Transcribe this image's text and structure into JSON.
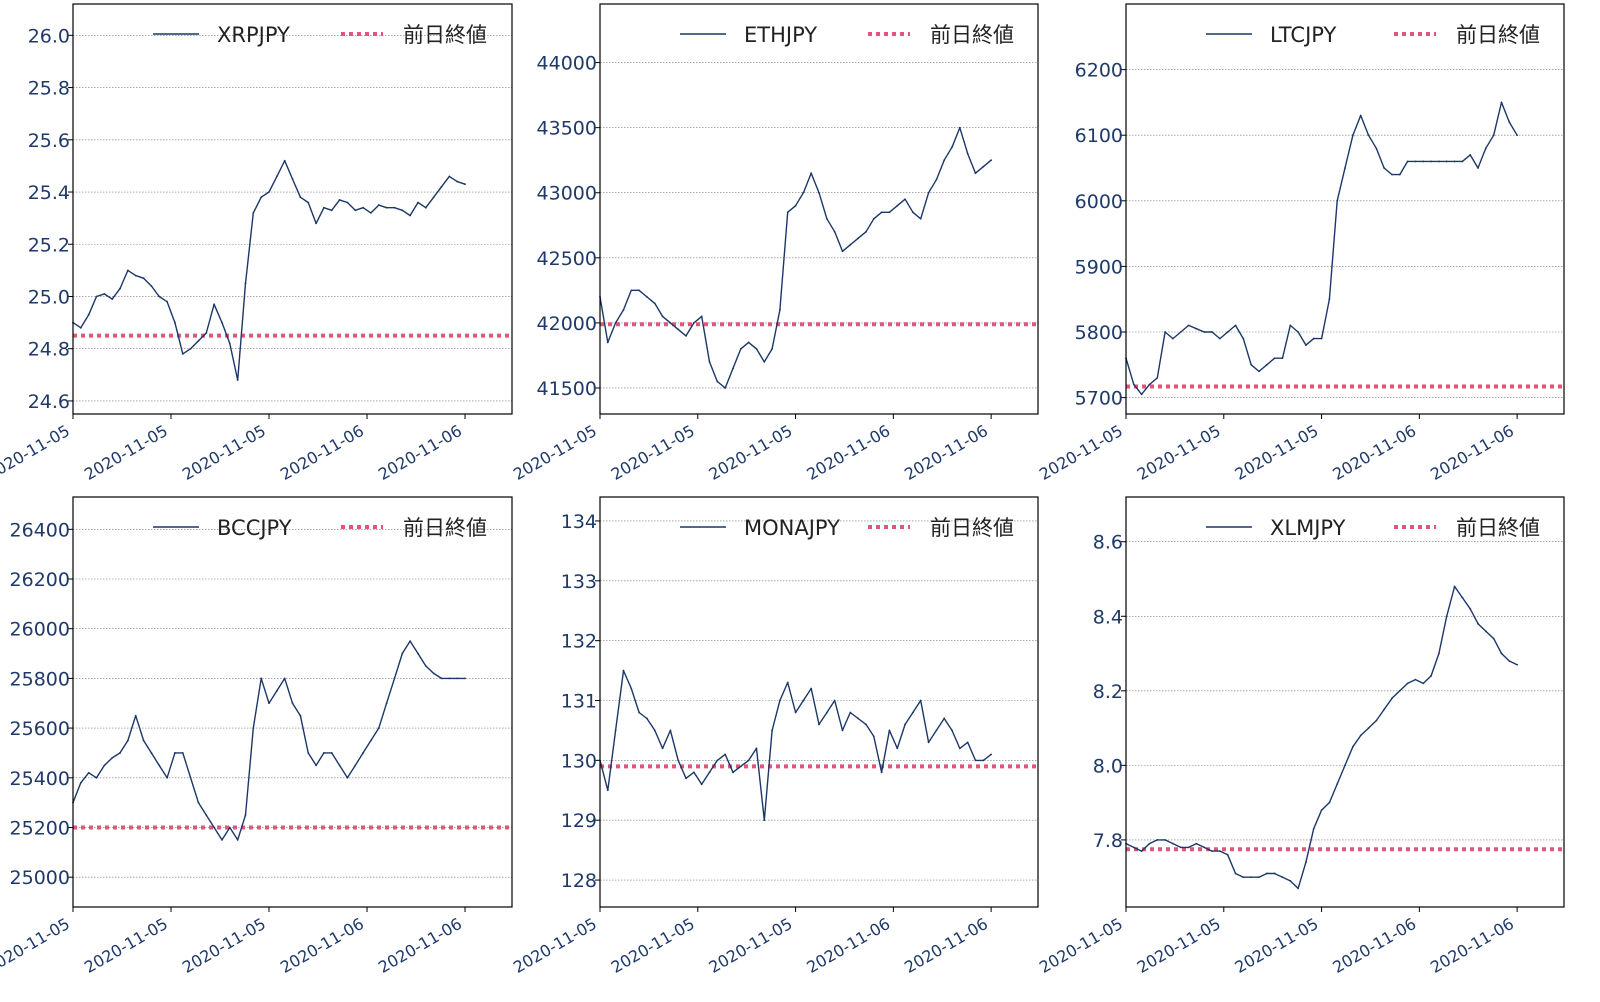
{
  "colors": {
    "series": "#1c3767",
    "reference": "#e0557a",
    "tick_text": "#1f3a6a",
    "grid": "#777777",
    "frame": "#000000"
  },
  "chart_data": [
    {
      "type": "line",
      "series": [
        {
          "name": "XRPJPY",
          "x": [
            0,
            2,
            4,
            6,
            8,
            10,
            12,
            14,
            16,
            18,
            20,
            22,
            24,
            26,
            28,
            30,
            32,
            34,
            36,
            38,
            40,
            42,
            44,
            46,
            48,
            50,
            52,
            54,
            56,
            58,
            60,
            62,
            64,
            66,
            68,
            70,
            72,
            74,
            76,
            78,
            80,
            82,
            84,
            86,
            88,
            90,
            92,
            94,
            96,
            98,
            100
          ],
          "values": [
            24.9,
            24.88,
            24.93,
            25.0,
            25.01,
            24.99,
            25.03,
            25.1,
            25.08,
            25.07,
            25.04,
            25.0,
            24.98,
            24.9,
            24.78,
            24.8,
            24.83,
            24.86,
            24.97,
            24.9,
            24.82,
            24.68,
            25.05,
            25.32,
            25.38,
            25.4,
            25.46,
            25.52,
            25.45,
            25.38,
            25.36,
            25.28,
            25.34,
            25.33,
            25.37,
            25.36,
            25.33,
            25.34,
            25.32,
            25.35,
            25.34,
            25.34,
            25.33,
            25.31,
            25.36,
            25.34,
            25.38,
            25.42,
            25.46,
            25.44,
            25.43
          ]
        },
        {
          "name": "前日終値",
          "values": [
            24.85
          ]
        }
      ],
      "x_tick_labels": [
        "2020-11-05",
        "2020-11-05",
        "2020-11-05",
        "2020-11-06",
        "2020-11-06"
      ],
      "y_ticks": [
        24.6,
        24.8,
        25.0,
        25.2,
        25.4,
        25.6,
        25.8,
        26.0
      ],
      "y_tick_labels": [
        "24.6",
        "24.8",
        "25.0",
        "25.2",
        "25.4",
        "25.6",
        "25.8",
        "26.0"
      ],
      "ylim": [
        24.55,
        26.12
      ],
      "grid": "horizontal",
      "legend": "top-right"
    },
    {
      "type": "line",
      "series": [
        {
          "name": "ETHJPY",
          "x": [
            0,
            2,
            4,
            6,
            8,
            10,
            12,
            14,
            16,
            18,
            20,
            22,
            24,
            26,
            28,
            30,
            32,
            34,
            36,
            38,
            40,
            42,
            44,
            46,
            48,
            50,
            52,
            54,
            56,
            58,
            60,
            62,
            64,
            66,
            68,
            70,
            72,
            74,
            76,
            78,
            80,
            82,
            84,
            86,
            88,
            90,
            92,
            94,
            96,
            98,
            100
          ],
          "values": [
            42200,
            41850,
            42000,
            42100,
            42250,
            42250,
            42200,
            42150,
            42050,
            42000,
            41950,
            41900,
            42000,
            42050,
            41700,
            41550,
            41500,
            41650,
            41800,
            41850,
            41800,
            41700,
            41800,
            42100,
            42850,
            42900,
            43000,
            43150,
            43000,
            42800,
            42700,
            42550,
            42600,
            42650,
            42700,
            42800,
            42850,
            42850,
            42900,
            42950,
            42850,
            42800,
            43000,
            43100,
            43250,
            43350,
            43500,
            43300,
            43150,
            43200,
            43250
          ]
        },
        {
          "name": "前日終値",
          "values": [
            41990
          ]
        }
      ],
      "x_tick_labels": [
        "2020-11-05",
        "2020-11-05",
        "2020-11-05",
        "2020-11-06",
        "2020-11-06"
      ],
      "y_ticks": [
        41500,
        42000,
        42500,
        43000,
        43500,
        44000
      ],
      "y_tick_labels": [
        "41500",
        "42000",
        "42500",
        "43000",
        "43500",
        "44000"
      ],
      "ylim": [
        41300,
        44450
      ],
      "grid": "horizontal",
      "legend": "top-right"
    },
    {
      "type": "line",
      "series": [
        {
          "name": "LTCJPY",
          "x": [
            0,
            2,
            4,
            6,
            8,
            10,
            12,
            14,
            16,
            18,
            20,
            22,
            24,
            26,
            28,
            30,
            32,
            34,
            36,
            38,
            40,
            42,
            44,
            46,
            48,
            50,
            52,
            54,
            56,
            58,
            60,
            62,
            64,
            66,
            68,
            70,
            72,
            74,
            76,
            78,
            80,
            82,
            84,
            86,
            88,
            90,
            92,
            94,
            96,
            98,
            100
          ],
          "values": [
            5760,
            5720,
            5705,
            5720,
            5730,
            5800,
            5790,
            5800,
            5810,
            5805,
            5800,
            5800,
            5790,
            5800,
            5810,
            5790,
            5750,
            5740,
            5750,
            5760,
            5760,
            5810,
            5800,
            5780,
            5790,
            5790,
            5850,
            6000,
            6050,
            6100,
            6130,
            6100,
            6080,
            6050,
            6040,
            6040,
            6060,
            6060,
            6060,
            6060,
            6060,
            6060,
            6060,
            6060,
            6070,
            6050,
            6080,
            6100,
            6150,
            6120,
            6100
          ]
        },
        {
          "name": "前日終値",
          "values": [
            5717
          ]
        }
      ],
      "x_tick_labels": [
        "2020-11-05",
        "2020-11-05",
        "2020-11-05",
        "2020-11-06",
        "2020-11-06"
      ],
      "y_ticks": [
        5700,
        5800,
        5900,
        6000,
        6100,
        6200
      ],
      "y_tick_labels": [
        "5700",
        "5800",
        "5900",
        "6000",
        "6100",
        "6200"
      ],
      "ylim": [
        5675,
        6300
      ],
      "grid": "horizontal",
      "legend": "top-right"
    },
    {
      "type": "line",
      "series": [
        {
          "name": "BCCJPY",
          "x": [
            0,
            2,
            4,
            6,
            8,
            10,
            12,
            14,
            16,
            18,
            20,
            22,
            24,
            26,
            28,
            30,
            32,
            34,
            36,
            38,
            40,
            42,
            44,
            46,
            48,
            50,
            52,
            54,
            56,
            58,
            60,
            62,
            64,
            66,
            68,
            70,
            72,
            74,
            76,
            78,
            80,
            82,
            84,
            86,
            88,
            90,
            92,
            94,
            96,
            98,
            100
          ],
          "values": [
            25300,
            25380,
            25420,
            25400,
            25450,
            25480,
            25500,
            25550,
            25650,
            25550,
            25500,
            25450,
            25400,
            25500,
            25500,
            25400,
            25300,
            25250,
            25200,
            25150,
            25200,
            25150,
            25250,
            25600,
            25800,
            25700,
            25750,
            25800,
            25700,
            25650,
            25500,
            25450,
            25500,
            25500,
            25450,
            25400,
            25450,
            25500,
            25550,
            25600,
            25700,
            25800,
            25900,
            25950,
            25900,
            25850,
            25820,
            25800,
            25800,
            25800,
            25800
          ]
        },
        {
          "name": "前日終値",
          "values": [
            25200
          ]
        }
      ],
      "x_tick_labels": [
        "2020-11-05",
        "2020-11-05",
        "2020-11-05",
        "2020-11-06",
        "2020-11-06"
      ],
      "y_ticks": [
        25000,
        25200,
        25400,
        25600,
        25800,
        26000,
        26200,
        26400
      ],
      "y_tick_labels": [
        "25000",
        "25200",
        "25400",
        "25600",
        "25800",
        "26000",
        "26200",
        "26400"
      ],
      "ylim": [
        24880,
        26530
      ],
      "grid": "horizontal",
      "legend": "top-right"
    },
    {
      "type": "line",
      "series": [
        {
          "name": "MONAJPY",
          "x": [
            0,
            2,
            4,
            6,
            8,
            10,
            12,
            14,
            16,
            18,
            20,
            22,
            24,
            26,
            28,
            30,
            32,
            34,
            36,
            38,
            40,
            42,
            44,
            46,
            48,
            50,
            52,
            54,
            56,
            58,
            60,
            62,
            64,
            66,
            68,
            70,
            72,
            74,
            76,
            78,
            80,
            82,
            84,
            86,
            88,
            90,
            92,
            94,
            96,
            98,
            100
          ],
          "values": [
            130.0,
            129.5,
            130.5,
            131.5,
            131.2,
            130.8,
            130.7,
            130.5,
            130.2,
            130.5,
            130.0,
            129.7,
            129.8,
            129.6,
            129.8,
            130.0,
            130.1,
            129.8,
            129.9,
            130.0,
            130.2,
            129.0,
            130.5,
            131.0,
            131.3,
            130.8,
            131.0,
            131.2,
            130.6,
            130.8,
            131.0,
            130.5,
            130.8,
            130.7,
            130.6,
            130.4,
            129.8,
            130.5,
            130.2,
            130.6,
            130.8,
            131.0,
            130.3,
            130.5,
            130.7,
            130.5,
            130.2,
            130.3,
            130.0,
            130.0,
            130.1
          ]
        },
        {
          "name": "前日終値",
          "values": [
            129.9
          ]
        }
      ],
      "x_tick_labels": [
        "2020-11-05",
        "2020-11-05",
        "2020-11-05",
        "2020-11-06",
        "2020-11-06"
      ],
      "y_ticks": [
        128,
        129,
        130,
        131,
        132,
        133,
        134
      ],
      "y_tick_labels": [
        "128",
        "129",
        "130",
        "131",
        "132",
        "133",
        "134"
      ],
      "ylim": [
        127.55,
        134.4
      ],
      "grid": "horizontal",
      "legend": "top-right"
    },
    {
      "type": "line",
      "series": [
        {
          "name": "XLMJPY",
          "x": [
            0,
            2,
            4,
            6,
            8,
            10,
            12,
            14,
            16,
            18,
            20,
            22,
            24,
            26,
            28,
            30,
            32,
            34,
            36,
            38,
            40,
            42,
            44,
            46,
            48,
            50,
            52,
            54,
            56,
            58,
            60,
            62,
            64,
            66,
            68,
            70,
            72,
            74,
            76,
            78,
            80,
            82,
            84,
            86,
            88,
            90,
            92,
            94,
            96,
            98,
            100
          ],
          "values": [
            7.79,
            7.78,
            7.77,
            7.79,
            7.8,
            7.8,
            7.79,
            7.78,
            7.78,
            7.79,
            7.78,
            7.77,
            7.77,
            7.76,
            7.71,
            7.7,
            7.7,
            7.7,
            7.71,
            7.71,
            7.7,
            7.69,
            7.67,
            7.74,
            7.83,
            7.88,
            7.9,
            7.95,
            8.0,
            8.05,
            8.08,
            8.1,
            8.12,
            8.15,
            8.18,
            8.2,
            8.22,
            8.23,
            8.22,
            8.24,
            8.3,
            8.4,
            8.48,
            8.45,
            8.42,
            8.38,
            8.36,
            8.34,
            8.3,
            8.28,
            8.27
          ]
        },
        {
          "name": "前日終値",
          "values": [
            7.775
          ]
        }
      ],
      "x_tick_labels": [
        "2020-11-05",
        "2020-11-05",
        "2020-11-05",
        "2020-11-06",
        "2020-11-06"
      ],
      "y_ticks": [
        7.8,
        8.0,
        8.2,
        8.4,
        8.6
      ],
      "y_tick_labels": [
        "7.8",
        "8.0",
        "8.2",
        "8.4",
        "8.6"
      ],
      "ylim": [
        7.62,
        8.72
      ],
      "grid": "horizontal",
      "legend": "top-right"
    }
  ]
}
